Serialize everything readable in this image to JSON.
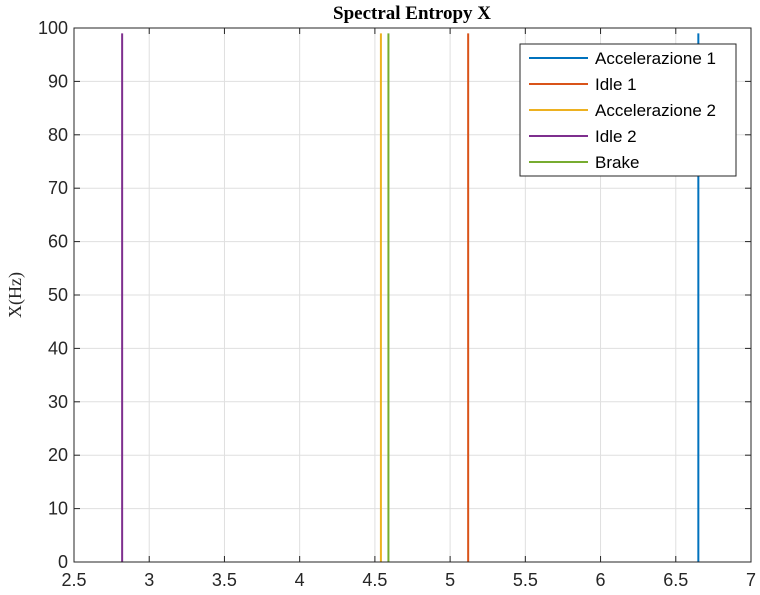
{
  "chart_data": {
    "type": "line",
    "title": "Spectral Entropy X",
    "xlabel": "",
    "ylabel": "X(Hz)",
    "xlim": [
      2.5,
      7
    ],
    "ylim": [
      0,
      100
    ],
    "xticks": [
      2.5,
      3,
      3.5,
      4,
      4.5,
      5,
      5.5,
      6,
      6.5,
      7
    ],
    "xtick_labels": [
      "2.5",
      "3",
      "3.5",
      "4",
      "4.5",
      "5",
      "5.5",
      "6",
      "6.5",
      "7"
    ],
    "yticks": [
      0,
      10,
      20,
      30,
      40,
      50,
      60,
      70,
      80,
      90,
      100
    ],
    "ytick_labels": [
      "0",
      "10",
      "20",
      "30",
      "40",
      "50",
      "60",
      "70",
      "80",
      "90",
      "100"
    ],
    "grid": true,
    "legend_position": "top-right",
    "series": [
      {
        "name": "Accelerazione 1",
        "color": "#0072BD",
        "x": [
          6.65,
          6.65
        ],
        "y": [
          0,
          99
        ]
      },
      {
        "name": "Idle 1",
        "color": "#D95319",
        "x": [
          5.12,
          5.12
        ],
        "y": [
          0,
          99
        ]
      },
      {
        "name": "Accelerazione 2",
        "color": "#EDB120",
        "x": [
          4.54,
          4.54
        ],
        "y": [
          0,
          99
        ]
      },
      {
        "name": "Idle 2",
        "color": "#7E2F8E",
        "x": [
          2.82,
          2.82
        ],
        "y": [
          0,
          99
        ]
      },
      {
        "name": "Brake",
        "color": "#77AC30",
        "x": [
          4.59,
          4.59
        ],
        "y": [
          0,
          99
        ]
      }
    ]
  }
}
